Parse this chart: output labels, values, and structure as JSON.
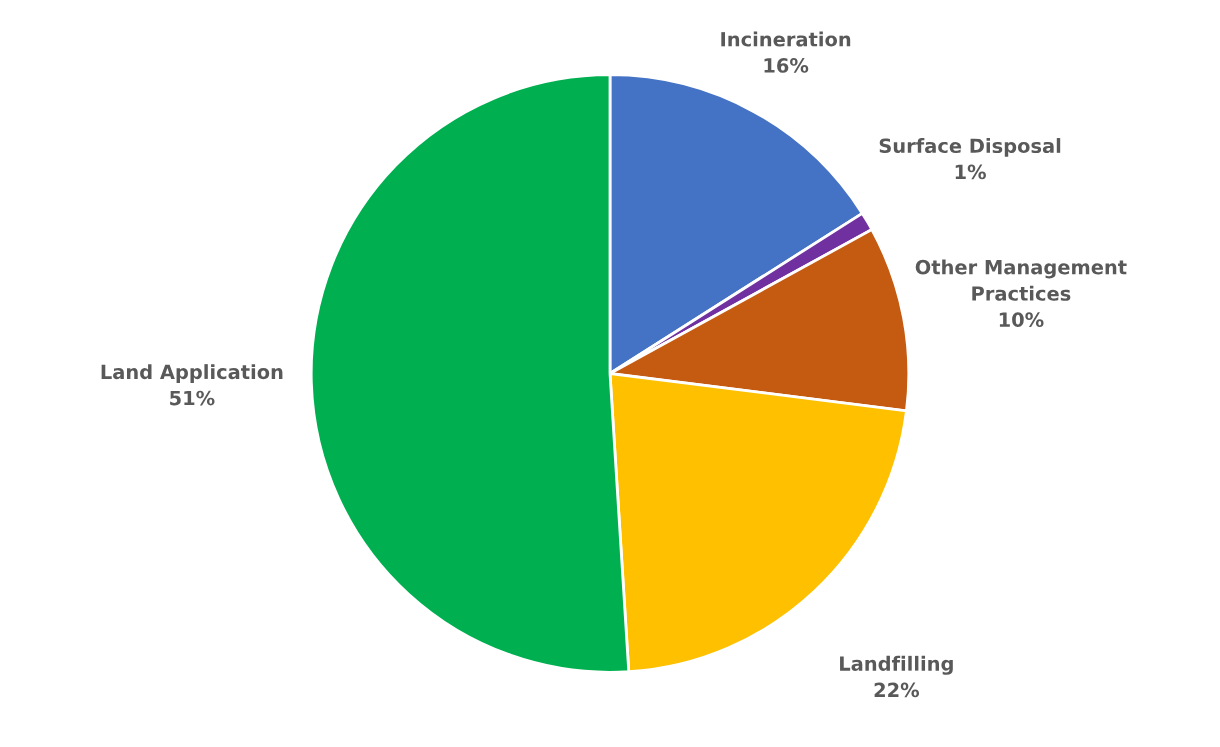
{
  "chart_data": {
    "type": "pie",
    "categories": [
      "Incineration",
      "Surface Disposal",
      "Other Management Practices",
      "Landfilling",
      "Land Application"
    ],
    "values": [
      16,
      1,
      10,
      22,
      51
    ],
    "value_labels": [
      "16%",
      "1%",
      "10%",
      "22%",
      "51%"
    ],
    "colors": [
      "#4472c4",
      "#7030a0",
      "#c55a11",
      "#ffc000",
      "#00b050"
    ],
    "legend": false
  }
}
